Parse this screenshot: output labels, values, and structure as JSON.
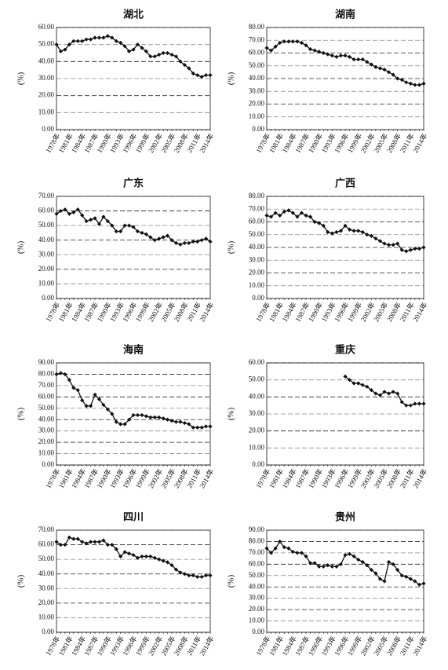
{
  "chart_data": [
    {
      "type": "line",
      "title": "湖北",
      "ylabel": "(%)",
      "color": "#111111",
      "grid": true,
      "categories": [
        "1978年",
        null,
        null,
        "1981年",
        null,
        null,
        "1984年",
        null,
        null,
        "1987年",
        null,
        null,
        "1990年",
        null,
        null,
        "1993年",
        null,
        null,
        "1996年",
        null,
        null,
        "1999年",
        null,
        null,
        "2002年",
        null,
        null,
        "2005年",
        null,
        null,
        "2008年",
        null,
        null,
        "2011年",
        null,
        null,
        "2014年"
      ],
      "values": [
        50,
        46,
        47,
        50,
        52,
        52,
        52,
        53,
        53,
        54,
        54,
        54,
        55,
        54,
        52,
        51,
        49,
        46,
        47,
        50,
        48,
        46,
        43,
        43,
        44,
        45,
        45,
        44,
        43,
        40,
        38,
        36,
        33,
        32,
        31,
        32,
        32
      ],
      "ylim": [
        0,
        60
      ],
      "yticks": [
        {
          "value": 0,
          "label": "0.00"
        },
        {
          "value": 10,
          "label": "10.00"
        },
        {
          "value": 20,
          "label": "20.00"
        },
        {
          "value": 30,
          "label": "30.00"
        },
        {
          "value": 40,
          "label": "40.00"
        },
        {
          "value": 50,
          "label": "50.00"
        },
        {
          "value": 60,
          "label": "60.00"
        }
      ]
    },
    {
      "type": "line",
      "title": "湖南",
      "ylabel": "(%)",
      "color": "#111111",
      "grid": true,
      "categories": [
        "1978年",
        null,
        null,
        "1981年",
        null,
        null,
        "1984年",
        null,
        null,
        "1987年",
        null,
        null,
        "1990年",
        null,
        null,
        "1993年",
        null,
        null,
        "1996年",
        null,
        null,
        "1999年",
        null,
        null,
        "2002年",
        null,
        null,
        "2005年",
        null,
        null,
        "2008年",
        null,
        null,
        "2011年",
        null,
        null,
        "2014年"
      ],
      "values": [
        64,
        62,
        65,
        68,
        69,
        69,
        69,
        69,
        68,
        66,
        63,
        62,
        61,
        60,
        59,
        58,
        57,
        58,
        58,
        57,
        55,
        55,
        55,
        53,
        51,
        49,
        48,
        47,
        45,
        43,
        40,
        39,
        37,
        36,
        35,
        35,
        36
      ],
      "ylim": [
        0,
        80
      ],
      "yticks": [
        {
          "value": 0,
          "label": "0.00"
        },
        {
          "value": 10,
          "label": "10.00"
        },
        {
          "value": 20,
          "label": "20.00"
        },
        {
          "value": 30,
          "label": "30.00"
        },
        {
          "value": 40,
          "label": "40.00"
        },
        {
          "value": 50,
          "label": "50.00"
        },
        {
          "value": 60,
          "label": "60.00"
        },
        {
          "value": 70,
          "label": "70.00"
        },
        {
          "value": 80,
          "label": "80.00"
        }
      ]
    },
    {
      "type": "line",
      "title": "广东",
      "ylabel": "(%)",
      "color": "#111111",
      "grid": true,
      "categories": [
        "1978年",
        null,
        null,
        "1981年",
        null,
        null,
        "1984年",
        null,
        null,
        "1987年",
        null,
        null,
        "1990年",
        null,
        null,
        "1993年",
        null,
        null,
        "1996年",
        null,
        null,
        "1999年",
        null,
        null,
        "2002年",
        null,
        null,
        "2005年",
        null,
        null,
        "2008年",
        null,
        null,
        "2011年",
        null,
        null,
        "2014年"
      ],
      "values": [
        58,
        60,
        61,
        58,
        59,
        61,
        57,
        53,
        54,
        55,
        51,
        56,
        53,
        50,
        46,
        46,
        50,
        50,
        49,
        46,
        45,
        44,
        42,
        40,
        41,
        42,
        43,
        40,
        38,
        37,
        38,
        38,
        39,
        39,
        40,
        41,
        39
      ],
      "ylim": [
        0,
        70
      ],
      "yticks": [
        {
          "value": 0,
          "label": "0.00"
        },
        {
          "value": 10,
          "label": "10.00"
        },
        {
          "value": 20,
          "label": "20.00"
        },
        {
          "value": 30,
          "label": "30.00"
        },
        {
          "value": 40,
          "label": "40.00"
        },
        {
          "value": 50,
          "label": "50.00"
        },
        {
          "value": 60,
          "label": "60.00"
        },
        {
          "value": 70,
          "label": "70.00"
        }
      ]
    },
    {
      "type": "line",
      "title": "广西",
      "ylabel": "(%)",
      "color": "#111111",
      "grid": true,
      "categories": [
        "1978年",
        null,
        null,
        "1981年",
        null,
        null,
        "1984年",
        null,
        null,
        "1987年",
        null,
        null,
        "1990年",
        null,
        null,
        "1993年",
        null,
        null,
        "1996年",
        null,
        null,
        "1999年",
        null,
        null,
        "2002年",
        null,
        null,
        "2005年",
        null,
        null,
        "2008年",
        null,
        null,
        "2011年",
        null,
        null,
        "2014年"
      ],
      "values": [
        65,
        64,
        67,
        65,
        68,
        69,
        67,
        64,
        67,
        65,
        64,
        60,
        59,
        57,
        52,
        51,
        52,
        53,
        57,
        54,
        53,
        53,
        52,
        50,
        49,
        47,
        45,
        43,
        42,
        42,
        43,
        38,
        37,
        38,
        39,
        39,
        40
      ],
      "ylim": [
        0,
        80
      ],
      "yticks": [
        {
          "value": 0,
          "label": "0.00"
        },
        {
          "value": 10,
          "label": "10.00"
        },
        {
          "value": 20,
          "label": "20.00"
        },
        {
          "value": 30,
          "label": "30.00"
        },
        {
          "value": 40,
          "label": "40.00"
        },
        {
          "value": 50,
          "label": "50.00"
        },
        {
          "value": 60,
          "label": "60.00"
        },
        {
          "value": 70,
          "label": "70.00"
        },
        {
          "value": 80,
          "label": "80.00"
        }
      ]
    },
    {
      "type": "line",
      "title": "海南",
      "ylabel": "(%)",
      "color": "#111111",
      "grid": true,
      "categories": [
        "1978年",
        null,
        null,
        "1981年",
        null,
        null,
        "1984年",
        null,
        null,
        "1987年",
        null,
        null,
        "1990年",
        null,
        null,
        "1993年",
        null,
        null,
        "1996年",
        null,
        null,
        "1999年",
        null,
        null,
        "2002年",
        null,
        null,
        "2005年",
        null,
        null,
        "2008年",
        null,
        null,
        "2011年",
        null,
        null,
        "2014年"
      ],
      "values": [
        80,
        81,
        80,
        75,
        68,
        66,
        57,
        52,
        52,
        62,
        58,
        53,
        49,
        45,
        38,
        36,
        36,
        40,
        44,
        44,
        44,
        43,
        42,
        42,
        42,
        41,
        40,
        39,
        38,
        38,
        37,
        36,
        33,
        33,
        33,
        34,
        34
      ],
      "ylim": [
        0,
        90
      ],
      "yticks": [
        {
          "value": 0,
          "label": "0.00"
        },
        {
          "value": 10,
          "label": "10.00"
        },
        {
          "value": 20,
          "label": "20.00"
        },
        {
          "value": 30,
          "label": "30.00"
        },
        {
          "value": 40,
          "label": "40.00"
        },
        {
          "value": 50,
          "label": "50.00"
        },
        {
          "value": 60,
          "label": "60.00"
        },
        {
          "value": 70,
          "label": "70.00"
        },
        {
          "value": 80,
          "label": "80.00"
        },
        {
          "value": 90,
          "label": "90.00"
        }
      ]
    },
    {
      "type": "line",
      "title": "重庆",
      "ylabel": "(%)",
      "color": "#111111",
      "grid": true,
      "categories": [
        "1978年",
        null,
        null,
        "1981年",
        null,
        null,
        "1984年",
        null,
        null,
        "1987年",
        null,
        null,
        "1990年",
        null,
        null,
        "1993年",
        null,
        null,
        "1996年",
        null,
        null,
        "1999年",
        null,
        null,
        "2002年",
        null,
        null,
        "2005年",
        null,
        null,
        "2008年",
        null,
        null,
        "2011年",
        null,
        null,
        "2014年"
      ],
      "values": [
        null,
        null,
        null,
        null,
        null,
        null,
        null,
        null,
        null,
        null,
        null,
        null,
        null,
        null,
        null,
        null,
        null,
        null,
        52,
        50,
        48,
        48,
        47,
        46,
        44,
        42,
        41,
        43,
        42,
        43,
        42,
        37,
        35,
        35,
        36,
        36,
        36
      ],
      "ylim": [
        0,
        60
      ],
      "yticks": [
        {
          "value": 0,
          "label": "0.00"
        },
        {
          "value": 10,
          "label": "10.00"
        },
        {
          "value": 20,
          "label": "20.00"
        },
        {
          "value": 30,
          "label": "30.00"
        },
        {
          "value": 40,
          "label": "40.00"
        },
        {
          "value": 50,
          "label": "50.00"
        },
        {
          "value": 60,
          "label": "60.00"
        }
      ]
    },
    {
      "type": "line",
      "title": "四川",
      "ylabel": "(%)",
      "color": "#111111",
      "grid": true,
      "categories": [
        "1978年",
        null,
        null,
        "1981年",
        null,
        null,
        "1984年",
        null,
        null,
        "1987年",
        null,
        null,
        "1990年",
        null,
        null,
        "1993年",
        null,
        null,
        "1996年",
        null,
        null,
        "1999年",
        null,
        null,
        "2002年",
        null,
        null,
        "2005年",
        null,
        null,
        "2008年",
        null,
        null,
        "2011年",
        null,
        null,
        "2014年"
      ],
      "values": [
        62,
        60,
        60,
        65,
        64,
        64,
        62,
        61,
        62,
        62,
        62,
        63,
        60,
        60,
        57,
        52,
        55,
        54,
        53,
        51,
        52,
        52,
        52,
        51,
        50,
        49,
        48,
        46,
        43,
        41,
        40,
        39,
        39,
        38,
        38,
        39,
        39
      ],
      "ylim": [
        0,
        70
      ],
      "yticks": [
        {
          "value": 0,
          "label": "0.00"
        },
        {
          "value": 10,
          "label": "10.00"
        },
        {
          "value": 20,
          "label": "20.00"
        },
        {
          "value": 30,
          "label": "30.00"
        },
        {
          "value": 40,
          "label": "40.00"
        },
        {
          "value": 50,
          "label": "50.00"
        },
        {
          "value": 60,
          "label": "60.00"
        },
        {
          "value": 70,
          "label": "70.00"
        }
      ]
    },
    {
      "type": "line",
      "title": "贵州",
      "ylabel": "(%)",
      "color": "#111111",
      "grid": true,
      "categories": [
        "1978年",
        null,
        null,
        "1981年",
        null,
        null,
        "1984年",
        null,
        null,
        "1987年",
        null,
        null,
        "1990年",
        null,
        null,
        "1993年",
        null,
        null,
        "1996年",
        null,
        null,
        "1999年",
        null,
        null,
        "2002年",
        null,
        null,
        "2005年",
        null,
        null,
        "2008年",
        null,
        null,
        "2011年",
        null,
        null,
        "2014年"
      ],
      "values": [
        74,
        70,
        74,
        80,
        75,
        74,
        71,
        70,
        70,
        67,
        61,
        61,
        58,
        58,
        59,
        58,
        58,
        60,
        68,
        69,
        67,
        64,
        62,
        59,
        55,
        52,
        47,
        45,
        62,
        60,
        55,
        50,
        49,
        47,
        45,
        42,
        43
      ],
      "ylim": [
        0,
        90
      ],
      "yticks": [
        {
          "value": 0,
          "label": "0.00"
        },
        {
          "value": 10,
          "label": "10.00"
        },
        {
          "value": 20,
          "label": "20.00"
        },
        {
          "value": 30,
          "label": "30.00"
        },
        {
          "value": 40,
          "label": "40.00"
        },
        {
          "value": 50,
          "label": "50.00"
        },
        {
          "value": 60,
          "label": "60.00"
        },
        {
          "value": 70,
          "label": "70.00"
        },
        {
          "value": 80,
          "label": "80.00"
        },
        {
          "value": 90,
          "label": "90.00"
        }
      ]
    }
  ]
}
